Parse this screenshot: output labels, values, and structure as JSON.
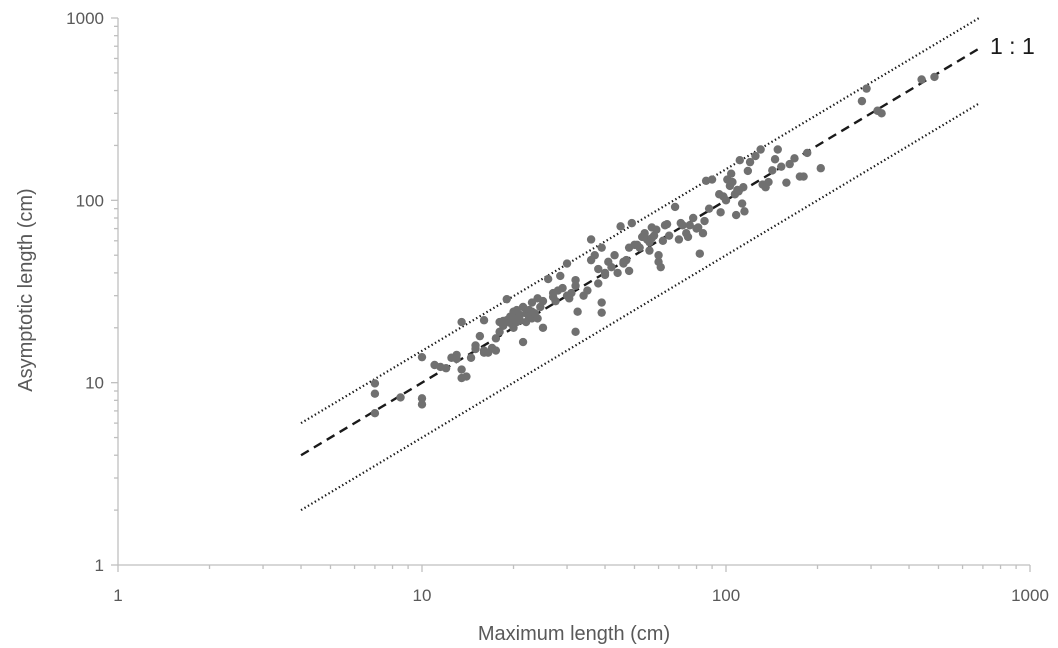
{
  "chart_data": {
    "type": "scatter",
    "xscale": "log",
    "yscale": "log",
    "xlim": [
      1,
      1000
    ],
    "ylim": [
      1,
      1000
    ],
    "xlabel": "Maximum length (cm)",
    "ylabel": "Asymptotic length (cm)",
    "x_ticks": [
      "1",
      "10",
      "100",
      "1000"
    ],
    "y_ticks": [
      "1",
      "10",
      "100",
      "1000"
    ],
    "grid": false,
    "point_color": "#707070",
    "reference_lines": [
      {
        "label": "1 : 1",
        "style": "dashed",
        "color": "#1a1a1a",
        "x": [
          4,
          680
        ],
        "y": [
          4,
          680
        ]
      },
      {
        "label": "",
        "style": "dotted",
        "color": "#1a1a1a",
        "x": [
          4,
          680
        ],
        "y": [
          6,
          1000
        ]
      },
      {
        "label": "",
        "style": "dotted",
        "color": "#1a1a1a",
        "x": [
          4,
          680
        ],
        "y": [
          2,
          340
        ]
      }
    ],
    "points": [
      [
        7,
        6.8
      ],
      [
        7,
        8.7
      ],
      [
        7,
        9.9
      ],
      [
        8.5,
        8.3
      ],
      [
        10,
        7.6
      ],
      [
        10,
        8.2
      ],
      [
        10,
        13.8
      ],
      [
        11,
        12.5
      ],
      [
        11.5,
        12.2
      ],
      [
        12,
        12.0
      ],
      [
        12.5,
        13.7
      ],
      [
        13,
        14.2
      ],
      [
        13,
        13.5
      ],
      [
        13.5,
        21.5
      ],
      [
        13.5,
        11.8
      ],
      [
        13.5,
        10.6
      ],
      [
        14,
        10.8
      ],
      [
        14.5,
        13.7
      ],
      [
        15,
        16.0
      ],
      [
        15,
        15.3
      ],
      [
        15.5,
        18
      ],
      [
        16,
        14.6
      ],
      [
        16,
        15
      ],
      [
        16,
        22
      ],
      [
        16.5,
        14.6
      ],
      [
        17,
        15.5
      ],
      [
        17.5,
        15.0
      ],
      [
        17.5,
        17.5
      ],
      [
        18,
        19
      ],
      [
        18,
        21.5
      ],
      [
        18.5,
        20.5
      ],
      [
        18.5,
        21.8
      ],
      [
        19,
        22
      ],
      [
        19,
        28.7
      ],
      [
        19.5,
        21.3
      ],
      [
        19.5,
        23
      ],
      [
        20,
        20
      ],
      [
        20,
        22.5
      ],
      [
        20,
        24.5
      ],
      [
        20.5,
        21.5
      ],
      [
        20.5,
        25
      ],
      [
        21,
        22
      ],
      [
        21,
        23.5
      ],
      [
        21.5,
        26
      ],
      [
        21.5,
        16.7
      ],
      [
        22,
        24
      ],
      [
        22,
        21.5
      ],
      [
        22.5,
        25
      ],
      [
        22.5,
        23
      ],
      [
        23,
        22.5
      ],
      [
        23,
        24.5
      ],
      [
        23,
        27.5
      ],
      [
        23.5,
        24
      ],
      [
        24,
        22.5
      ],
      [
        24,
        29
      ],
      [
        24.5,
        26
      ],
      [
        25,
        28
      ],
      [
        25,
        20
      ],
      [
        26,
        37
      ],
      [
        27,
        29.5
      ],
      [
        27,
        31
      ],
      [
        27.5,
        28
      ],
      [
        28,
        32
      ],
      [
        28.5,
        38.5
      ],
      [
        29,
        33
      ],
      [
        30,
        45
      ],
      [
        30,
        30
      ],
      [
        30.5,
        29
      ],
      [
        31,
        31
      ],
      [
        32,
        34
      ],
      [
        32,
        36.5
      ],
      [
        32,
        19
      ],
      [
        32.5,
        24.5
      ],
      [
        34,
        30
      ],
      [
        35,
        32
      ],
      [
        36,
        61
      ],
      [
        36,
        47
      ],
      [
        37,
        50
      ],
      [
        38,
        42
      ],
      [
        38,
        35
      ],
      [
        39,
        55
      ],
      [
        39,
        27.5
      ],
      [
        39,
        24.2
      ],
      [
        40,
        39
      ],
      [
        40,
        40
      ],
      [
        41,
        46
      ],
      [
        42,
        43
      ],
      [
        43,
        50
      ],
      [
        44,
        40
      ],
      [
        45,
        72
      ],
      [
        46,
        46
      ],
      [
        46,
        45
      ],
      [
        47,
        47
      ],
      [
        48,
        41
      ],
      [
        48,
        55
      ],
      [
        49,
        75
      ],
      [
        50,
        57
      ],
      [
        51,
        57
      ],
      [
        52,
        55
      ],
      [
        53,
        63
      ],
      [
        54,
        66
      ],
      [
        55,
        61
      ],
      [
        56,
        53
      ],
      [
        56,
        59
      ],
      [
        57,
        71
      ],
      [
        57,
        62
      ],
      [
        58,
        64
      ],
      [
        59,
        69
      ],
      [
        60,
        46
      ],
      [
        60,
        50
      ],
      [
        61,
        43
      ],
      [
        62,
        60
      ],
      [
        63,
        73
      ],
      [
        64,
        74
      ],
      [
        65,
        64
      ],
      [
        68,
        92
      ],
      [
        70,
        61
      ],
      [
        71,
        75
      ],
      [
        72,
        73
      ],
      [
        74,
        66
      ],
      [
        75,
        63
      ],
      [
        76,
        73
      ],
      [
        78,
        80
      ],
      [
        80,
        70
      ],
      [
        81,
        71
      ],
      [
        82,
        51
      ],
      [
        84,
        66
      ],
      [
        85,
        77
      ],
      [
        86,
        128
      ],
      [
        88,
        90
      ],
      [
        90,
        130
      ],
      [
        95,
        108
      ],
      [
        96,
        86
      ],
      [
        98,
        105
      ],
      [
        100,
        100
      ],
      [
        101,
        130
      ],
      [
        103,
        120
      ],
      [
        104,
        140
      ],
      [
        105,
        126
      ],
      [
        107,
        108
      ],
      [
        108,
        83
      ],
      [
        109,
        114
      ],
      [
        110,
        112
      ],
      [
        111,
        166
      ],
      [
        113,
        96
      ],
      [
        114,
        118
      ],
      [
        115,
        87
      ],
      [
        118,
        145
      ],
      [
        120,
        162
      ],
      [
        125,
        175
      ],
      [
        130,
        190
      ],
      [
        132,
        122
      ],
      [
        135,
        118
      ],
      [
        138,
        126
      ],
      [
        142,
        146
      ],
      [
        145,
        168
      ],
      [
        148,
        190
      ],
      [
        152,
        153
      ],
      [
        158,
        125
      ],
      [
        162,
        158
      ],
      [
        168,
        170
      ],
      [
        175,
        135
      ],
      [
        180,
        135
      ],
      [
        185,
        182
      ],
      [
        205,
        150
      ],
      [
        280,
        350
      ],
      [
        290,
        410
      ],
      [
        315,
        310
      ],
      [
        325,
        300
      ],
      [
        440,
        460
      ],
      [
        485,
        475
      ]
    ]
  }
}
